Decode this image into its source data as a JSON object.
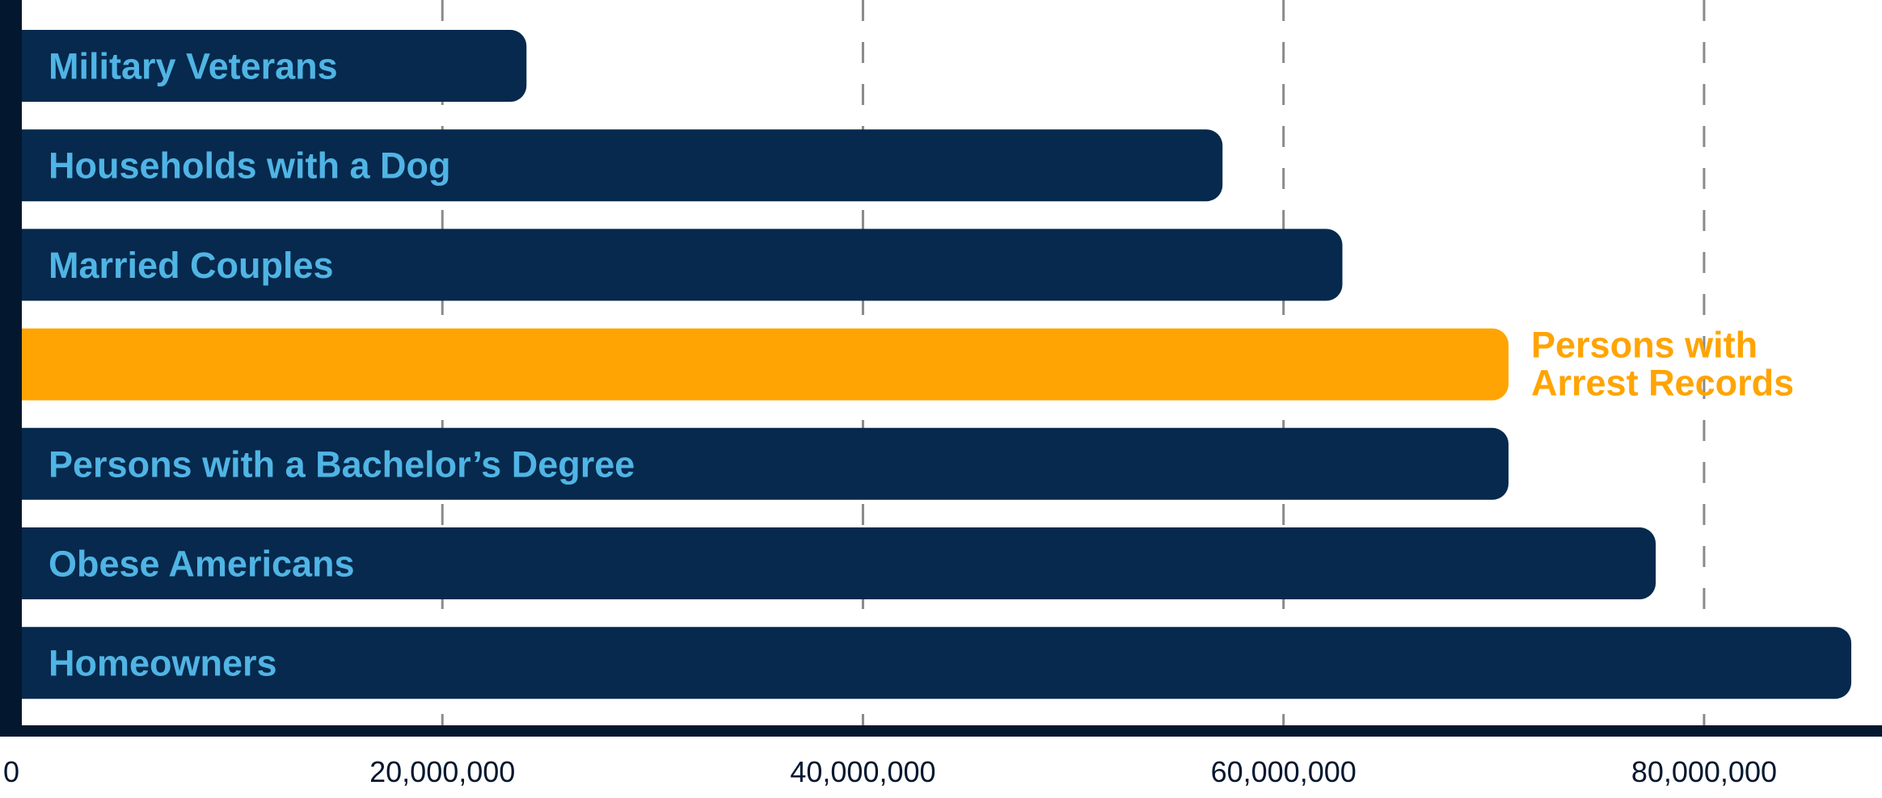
{
  "colors": {
    "bar": "#06294D",
    "highlight": "#FFA402",
    "label": "#50B4E4",
    "axis": "#03172F",
    "grid": "#8A8A8A",
    "tick_text": "#03172F"
  },
  "chart_data": {
    "type": "bar",
    "orientation": "horizontal",
    "title": "",
    "xlabel": "",
    "ylabel": "",
    "xlim": [
      0,
      87000000
    ],
    "grid": "vertical dashed",
    "x_ticks": [
      0,
      20000000,
      40000000,
      60000000,
      80000000
    ],
    "x_tick_labels": [
      "0",
      "20,000,000",
      "40,000,000",
      "60,000,000",
      "80,000,000"
    ],
    "categories": [
      "Military Veterans",
      "Households with a Dog",
      "Married Couples",
      "Persons with Arrest Records",
      "Persons with a Bachelor’s Degree",
      "Obese Americans",
      "Homeowners"
    ],
    "label_lines": [
      [
        "Military Veterans"
      ],
      [
        "Households with a Dog"
      ],
      [
        "Married Couples"
      ],
      [
        "Persons with",
        "Arrest Records"
      ],
      [
        "Persons with a Bachelor’s Degree"
      ],
      [
        "Obese Americans"
      ],
      [
        "Homeowners"
      ]
    ],
    "values": [
      24000000,
      57100000,
      62800000,
      70700000,
      70700000,
      77700000,
      87000000
    ],
    "highlighted": [
      "Persons with Arrest Records"
    ]
  }
}
